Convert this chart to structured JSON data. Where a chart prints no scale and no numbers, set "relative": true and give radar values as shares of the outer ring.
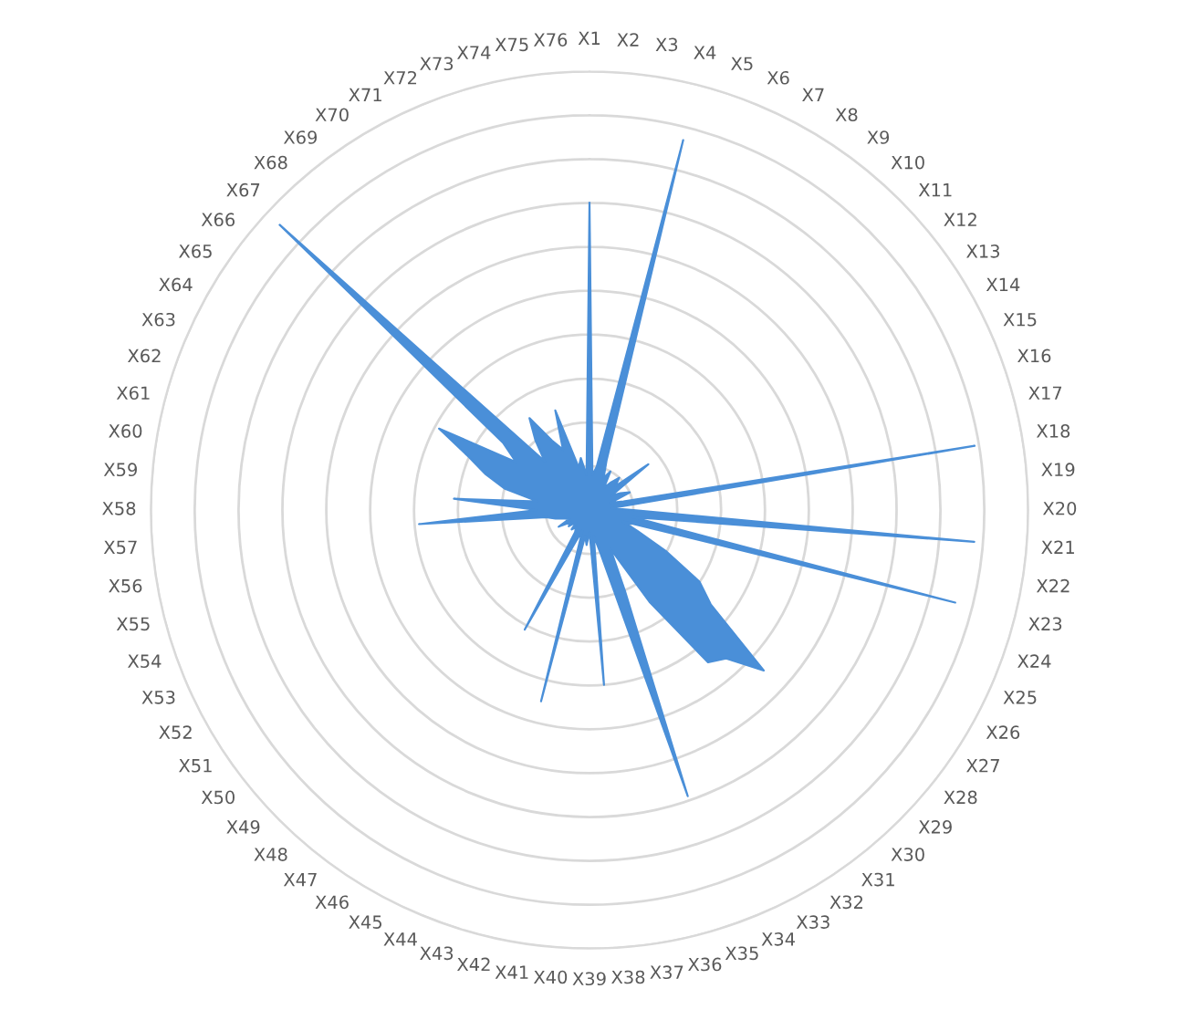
{
  "chart_data": {
    "type": "radar",
    "relative": true,
    "grid": "y",
    "categories": [
      "X1",
      "X2",
      "X3",
      "X4",
      "X5",
      "X6",
      "X7",
      "X8",
      "X9",
      "X10",
      "X11",
      "X12",
      "X13",
      "X14",
      "X15",
      "X16",
      "X17",
      "X18",
      "X19",
      "X20",
      "X21",
      "X22",
      "X23",
      "X24",
      "X25",
      "X26",
      "X27",
      "X28",
      "X29",
      "X30",
      "X31",
      "X32",
      "X33",
      "X34",
      "X35",
      "X36",
      "X37",
      "X38",
      "X39",
      "X40",
      "X41",
      "X42",
      "X43",
      "X44",
      "X45",
      "X46",
      "X47",
      "X48",
      "X49",
      "X50",
      "X51",
      "X52",
      "X53",
      "X54",
      "X55",
      "X56",
      "X57",
      "X58",
      "X59",
      "X60",
      "X61",
      "X62",
      "X63",
      "X64",
      "X65",
      "X66",
      "X67",
      "X68",
      "X69",
      "X70",
      "X71",
      "X72",
      "X73",
      "X74",
      "X75",
      "X76"
    ],
    "series": [
      {
        "color": "#4a8fd8",
        "values": [
          0.7,
          0.08,
          0.1,
          0.87,
          0.12,
          0.08,
          0.1,
          0.06,
          0.08,
          0.1,
          0.08,
          0.17,
          0.06,
          0.08,
          0.1,
          0.05,
          0.08,
          0.89,
          0.05,
          0.1,
          0.88,
          0.1,
          0.86,
          0.08,
          0.12,
          0.2,
          0.3,
          0.35,
          0.54,
          0.46,
          0.44,
          0.25,
          0.1,
          0.2,
          0.69,
          0.1,
          0.06,
          0.4,
          0.05,
          0.08,
          0.06,
          0.45,
          0.05,
          0.08,
          0.31,
          0.06,
          0.05,
          0.06,
          0.04,
          0.06,
          0.05,
          0.08,
          0.05,
          0.06,
          0.08,
          0.1,
          0.39,
          0.12,
          0.31,
          0.12,
          0.2,
          0.25,
          0.3,
          0.39,
          0.2,
          0.25,
          0.96,
          0.15,
          0.2,
          0.25,
          0.18,
          0.15,
          0.24,
          0.1,
          0.12,
          0.08
        ]
      }
    ]
  }
}
